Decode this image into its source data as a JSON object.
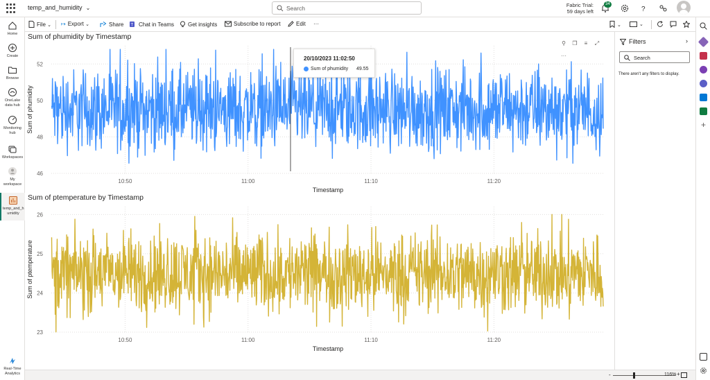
{
  "topbar": {
    "app_title": "temp_and_humidity",
    "search_placeholder": "Search",
    "trial_line1": "Fabric Trial:",
    "trial_line2": "59 days left",
    "notification_count": "34"
  },
  "leftnav": {
    "items": [
      {
        "label": "Home",
        "icon": "home-icon"
      },
      {
        "label": "Create",
        "icon": "plus-circle-icon"
      },
      {
        "label": "Browse",
        "icon": "folder-icon"
      },
      {
        "label": "OneLake data hub",
        "icon": "onelake-icon"
      },
      {
        "label": "Monitoring hub",
        "icon": "monitor-icon"
      },
      {
        "label": "Workspaces",
        "icon": "workspaces-icon"
      },
      {
        "label": "My workspace",
        "icon": "person-icon"
      },
      {
        "label": "temp_and_h umidity",
        "icon": "report-icon"
      }
    ],
    "bottom": {
      "label": "Real-Time Analytics",
      "icon": "realtime-icon"
    }
  },
  "toolbar": {
    "file": "File",
    "export": "Export",
    "share": "Share",
    "chat": "Chat in Teams",
    "insights": "Get insights",
    "subscribe": "Subscribe to report",
    "edit": "Edit",
    "more": "···"
  },
  "filters": {
    "title": "Filters",
    "search_placeholder": "Search",
    "empty": "There aren't any filters to display."
  },
  "tooltip": {
    "title": "20/10/2023 11:02:50",
    "series": "Sum of phumidity",
    "value": "49.55"
  },
  "status": {
    "zoom": "116%"
  },
  "colors": {
    "humidity": "#4092ff",
    "temperature": "#d4b437",
    "accent": "#117865"
  },
  "chart_data": [
    {
      "type": "line",
      "title": "Sum of phumidity by Timestamp",
      "xlabel": "Timestamp",
      "ylabel": "Sum of phumidity",
      "x_ticks": [
        "10:50",
        "11:00",
        "11:10",
        "11:20"
      ],
      "y_ticks": [
        46,
        48,
        50,
        52
      ],
      "ylim": [
        46,
        53
      ],
      "x_range": [
        "10:44",
        "11:29"
      ],
      "series": [
        {
          "values_mean": 49.5,
          "values_min": 46.2,
          "values_max": 52.8
        }
      ],
      "grid": true
    },
    {
      "type": "line",
      "title": "Sum of ptemperature by Timestamp",
      "xlabel": "Timestamp",
      "ylabel": "Sum of ptemperature",
      "x_ticks": [
        "10:50",
        "11:00",
        "11:10",
        "11:20"
      ],
      "y_ticks": [
        23,
        24,
        25,
        26
      ],
      "ylim": [
        23,
        26.2
      ],
      "x_range": [
        "10:44",
        "11:29"
      ],
      "series": [
        {
          "values_mean": 24.5,
          "values_min": 23.0,
          "values_max": 26.0
        }
      ],
      "grid": true
    }
  ]
}
